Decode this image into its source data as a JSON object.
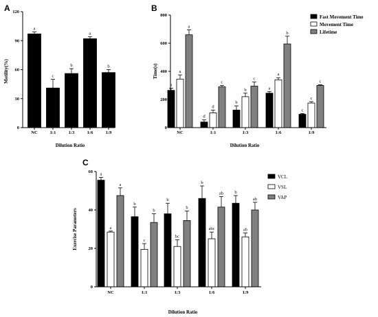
{
  "chart_data": [
    {
      "panel": "A",
      "type": "bar",
      "xlabel": "Dilution Ratio",
      "ylabel": "Motility(%)",
      "ylim": [
        0,
        120
      ],
      "yticks": [
        0,
        30,
        60,
        90,
        120
      ],
      "categories": [
        "NC",
        "1:1",
        "1:3",
        "1:6",
        "1:9"
      ],
      "series": [
        {
          "color": "#000000",
          "values": [
            97,
            41,
            56,
            92,
            57
          ],
          "errors": [
            2,
            9,
            5,
            2,
            3
          ],
          "labels": [
            "a",
            "c",
            "b",
            "a",
            "b"
          ]
        }
      ]
    },
    {
      "panel": "B",
      "type": "bar",
      "xlabel": "Dilution Ratio",
      "ylabel": "Time(s)",
      "ylim": [
        0,
        800
      ],
      "yticks": [
        0,
        200,
        400,
        600,
        800
      ],
      "categories": [
        "NC",
        "1:1",
        "1:3",
        "1:6",
        "1:9"
      ],
      "legend_position": "top-right",
      "series": [
        {
          "name": "Fast Movement Time",
          "color": "#000000",
          "values": [
            265,
            40,
            125,
            245,
            95
          ],
          "errors": [
            15,
            15,
            30,
            12,
            5
          ],
          "labels": [
            "a",
            "d",
            "b",
            "a",
            "c"
          ]
        },
        {
          "name": "Movement Time",
          "color": "#ffffff",
          "values": [
            345,
            105,
            220,
            340,
            175
          ],
          "errors": [
            30,
            20,
            25,
            15,
            10
          ],
          "labels": [
            "a",
            "d",
            "b",
            "a",
            "c"
          ]
        },
        {
          "name": "Lifetime",
          "color": "#808080",
          "values": [
            660,
            290,
            295,
            595,
            300
          ],
          "errors": [
            35,
            10,
            30,
            55,
            5
          ],
          "labels": [
            "a",
            "c",
            "c",
            "b",
            "c"
          ]
        }
      ]
    },
    {
      "panel": "C",
      "type": "bar",
      "xlabel": "Dilution Ratio",
      "ylabel": "Exercise Parameters",
      "ylim": [
        0,
        60
      ],
      "yticks": [
        0,
        20,
        40,
        60
      ],
      "categories": [
        "NC",
        "1:1",
        "1:3",
        "1:6",
        "1:9"
      ],
      "legend_position": "top-right",
      "series": [
        {
          "name": "VCL",
          "color": "#000000",
          "values": [
            55.5,
            36.5,
            38,
            46,
            43.5
          ],
          "errors": [
            1.5,
            5,
            5.5,
            6.5,
            4
          ],
          "labels": [
            "a",
            "b",
            "b",
            "b",
            "b"
          ]
        },
        {
          "name": "VSL",
          "color": "#ffffff",
          "values": [
            28.5,
            19.5,
            21,
            25,
            26
          ],
          "errors": [
            0.5,
            3,
            3.5,
            3.5,
            2
          ],
          "labels": [
            "a",
            "c",
            "bc",
            "abc",
            "ab"
          ]
        },
        {
          "name": "VAP",
          "color": "#808080",
          "values": [
            47.5,
            33.5,
            34.5,
            41.5,
            40
          ],
          "errors": [
            4,
            4.5,
            5,
            5.5,
            4
          ],
          "labels": [
            "a",
            "b",
            "b",
            "ab",
            "ab"
          ]
        }
      ]
    }
  ]
}
